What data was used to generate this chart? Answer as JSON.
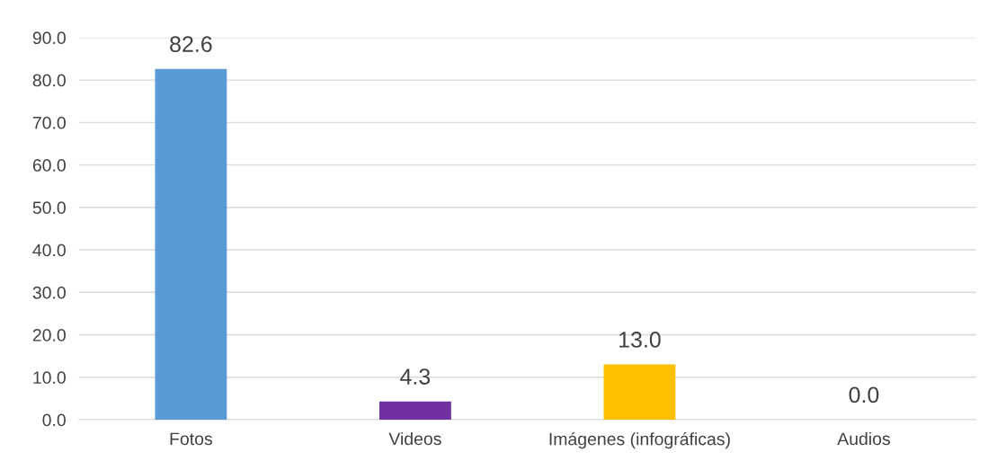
{
  "chart_data": {
    "type": "bar",
    "categories": [
      "Fotos",
      "Videos",
      "Imágenes (infográficas)",
      "Audios"
    ],
    "values": [
      82.6,
      4.3,
      13.0,
      0.0
    ],
    "colors": [
      "#5b9bd5",
      "#7030a0",
      "#ffc000",
      "#70ad47"
    ],
    "value_labels": [
      "82.6",
      "4.3",
      "13.0",
      "0.0"
    ],
    "ylim": [
      0,
      90
    ],
    "yticks": [
      {
        "value": 0,
        "label": "0.0"
      },
      {
        "value": 10,
        "label": "10.0"
      },
      {
        "value": 20,
        "label": "20.0"
      },
      {
        "value": 30,
        "label": "30.0"
      },
      {
        "value": 40,
        "label": "40.0"
      },
      {
        "value": 50,
        "label": "50.0"
      },
      {
        "value": 60,
        "label": "60.0"
      },
      {
        "value": 70,
        "label": "70.0"
      },
      {
        "value": 80,
        "label": "80.0"
      },
      {
        "value": 90,
        "label": "90.0"
      }
    ],
    "grid": "y",
    "legend": false
  }
}
